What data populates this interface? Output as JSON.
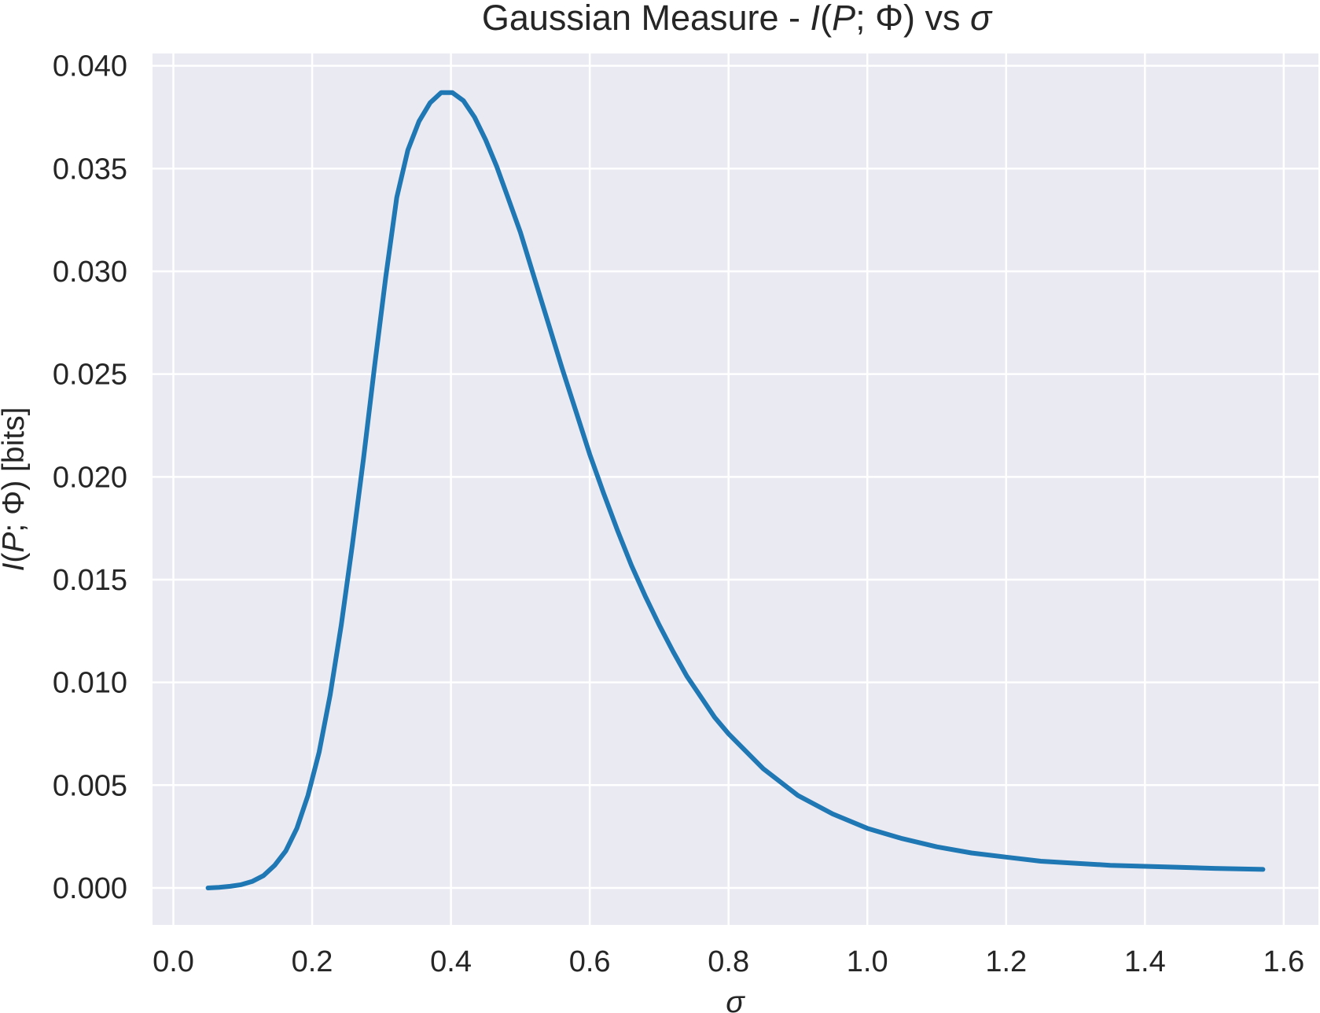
{
  "chart_data": {
    "type": "line",
    "title_parts": {
      "prefix": "Gaussian Measure - ",
      "var_i": "I",
      "open": "(",
      "var_p": "P",
      "sep": "; Φ)",
      "vs": " vs ",
      "var_sigma": "σ"
    },
    "xlabel": "σ",
    "ylabel_parts": {
      "var_i": "I",
      "open": "(",
      "var_p": "P",
      "rest": "; Φ) [bits]"
    },
    "xlim": [
      -0.03,
      1.65
    ],
    "ylim": [
      -0.0018,
      0.0406
    ],
    "xticks": [
      "0.0",
      "0.2",
      "0.4",
      "0.6",
      "0.8",
      "1.0",
      "1.2",
      "1.4",
      "1.6"
    ],
    "yticks": [
      "0.000",
      "0.005",
      "0.010",
      "0.015",
      "0.020",
      "0.025",
      "0.030",
      "0.035",
      "0.040"
    ],
    "grid": true,
    "background": "#eaeaf2",
    "series": [
      {
        "color": "#1f77b4",
        "x": [
          0.05,
          0.066,
          0.082,
          0.098,
          0.114,
          0.13,
          0.146,
          0.162,
          0.178,
          0.194,
          0.21,
          0.226,
          0.242,
          0.258,
          0.274,
          0.29,
          0.306,
          0.322,
          0.338,
          0.354,
          0.37,
          0.386,
          0.402,
          0.418,
          0.434,
          0.45,
          0.466,
          0.482,
          0.5,
          0.52,
          0.54,
          0.56,
          0.58,
          0.6,
          0.62,
          0.64,
          0.66,
          0.68,
          0.7,
          0.72,
          0.74,
          0.76,
          0.78,
          0.8,
          0.85,
          0.9,
          0.95,
          1.0,
          1.05,
          1.1,
          1.15,
          1.2,
          1.25,
          1.3,
          1.35,
          1.4,
          1.45,
          1.5,
          1.57
        ],
        "y": [
          0.0,
          3e-05,
          8e-05,
          0.00016,
          0.00032,
          0.0006,
          0.0011,
          0.0018,
          0.0029,
          0.0045,
          0.0066,
          0.0094,
          0.0128,
          0.0167,
          0.0209,
          0.0254,
          0.0297,
          0.0336,
          0.0359,
          0.0373,
          0.0382,
          0.0387,
          0.0387,
          0.0383,
          0.0375,
          0.0364,
          0.0351,
          0.0336,
          0.0319,
          0.0297,
          0.0275,
          0.0253,
          0.0232,
          0.0211,
          0.0192,
          0.0174,
          0.0157,
          0.0142,
          0.0128,
          0.0115,
          0.0103,
          0.0093,
          0.0083,
          0.0075,
          0.0058,
          0.0045,
          0.0036,
          0.0029,
          0.0024,
          0.002,
          0.0017,
          0.0015,
          0.0013,
          0.0012,
          0.0011,
          0.00105,
          0.001,
          0.00095,
          0.0009
        ]
      }
    ]
  }
}
